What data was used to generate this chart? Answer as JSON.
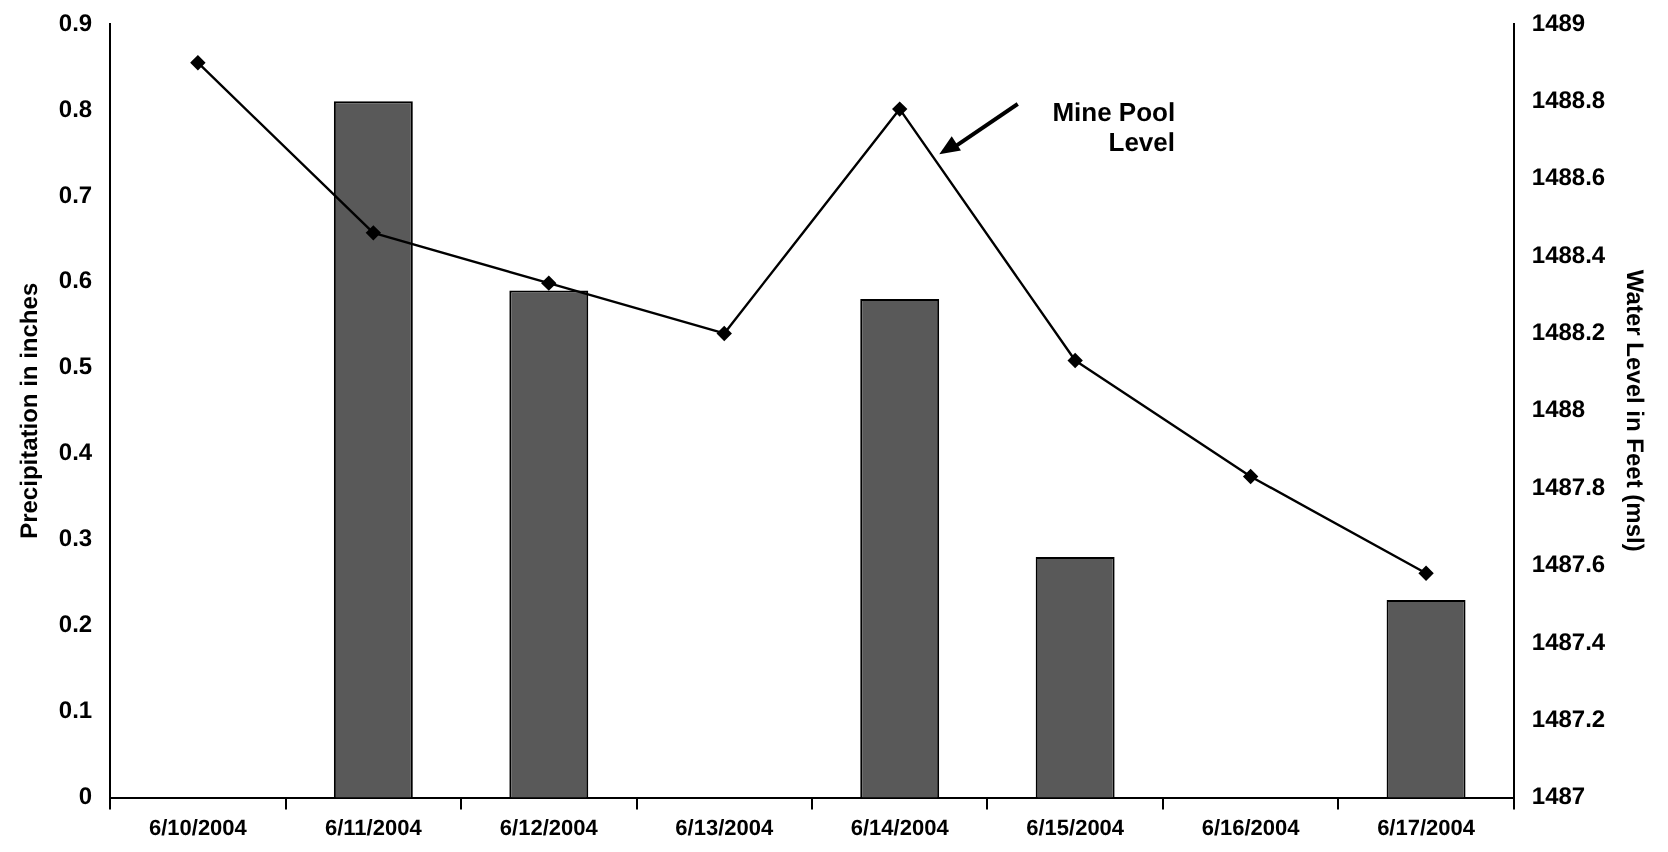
{
  "chart_data": {
    "type": "bar",
    "categories": [
      "6/10/2004",
      "6/11/2004",
      "6/12/2004",
      "6/13/2004",
      "6/14/2004",
      "6/15/2004",
      "6/16/2004",
      "6/17/2004"
    ],
    "ylabel": "Precipitation in inches",
    "y2label": "Water Level in Feet (msl)",
    "series": [
      {
        "color": "#595959",
        "values": [
          0,
          0.81,
          0.59,
          0,
          0.58,
          0.28,
          0,
          0.23
        ]
      },
      {
        "type": "line",
        "axis": "y2",
        "color": "#000000",
        "marker": "diamond",
        "values": [
          1488.9,
          1488.46,
          1488.33,
          1488.2,
          1488.78,
          1488.13,
          1487.83,
          1487.58
        ]
      }
    ],
    "ylim": [
      0,
      0.9
    ],
    "yticks": [
      0,
      0.1,
      0.2,
      0.3,
      0.4,
      0.5,
      0.6,
      0.7,
      0.8,
      0.9
    ],
    "y2lim": [
      1487,
      1489
    ],
    "y2ticks": [
      1487,
      1487.2,
      1487.4,
      1487.6,
      1487.8,
      1488,
      1488.2,
      1488.4,
      1488.6,
      1488.8,
      1489
    ],
    "annotations": [
      "Mine Pool Level"
    ],
    "grid": false,
    "legend": false
  }
}
